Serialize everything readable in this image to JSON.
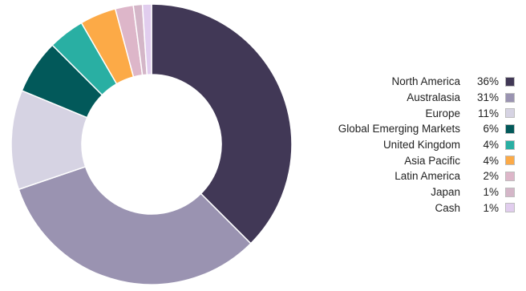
{
  "chart_data": {
    "type": "pie",
    "variant": "donut",
    "title": "",
    "legend_position": "right",
    "slices": [
      {
        "label": "North America",
        "value": 36,
        "display": "36%",
        "color": "#413856"
      },
      {
        "label": "Australasia",
        "value": 31,
        "display": "31%",
        "color": "#9a93b1"
      },
      {
        "label": "Europe",
        "value": 11,
        "display": "11%",
        "color": "#d6d3e3"
      },
      {
        "label": "Global Emerging Markets",
        "value": 6,
        "display": "6%",
        "color": "#02595a"
      },
      {
        "label": "United Kingdom",
        "value": 4,
        "display": "4%",
        "color": "#29afa3"
      },
      {
        "label": "Asia Pacific",
        "value": 4,
        "display": "4%",
        "color": "#fcaa47"
      },
      {
        "label": "Latin America",
        "value": 2,
        "display": "2%",
        "color": "#ddb6c9"
      },
      {
        "label": "Japan",
        "value": 1,
        "display": "1%",
        "color": "#d4b6c8"
      },
      {
        "label": "Cash",
        "value": 1,
        "display": "1%",
        "color": "#e1cdee"
      }
    ]
  }
}
